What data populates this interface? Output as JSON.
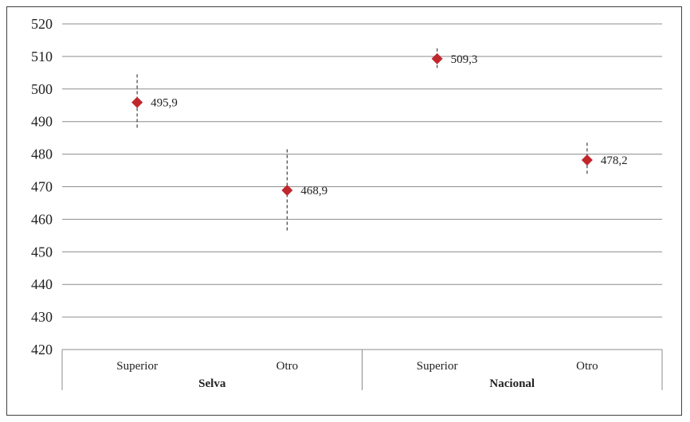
{
  "chart_data": {
    "type": "scatter",
    "title": "",
    "xlabel": "",
    "ylabel": "",
    "ylim": [
      420,
      520
    ],
    "yticks": [
      420,
      430,
      440,
      450,
      460,
      470,
      480,
      490,
      500,
      510,
      520
    ],
    "grid": true,
    "groups": [
      "Selva",
      "Nacional"
    ],
    "categories": [
      "Superior",
      "Otro",
      "Superior",
      "Otro"
    ],
    "points": [
      {
        "group": "Selva",
        "category": "Superior",
        "value": 495.9,
        "label": "495,9",
        "lower": 487.5,
        "upper": 504.5
      },
      {
        "group": "Selva",
        "category": "Otro",
        "value": 468.9,
        "label": "468,9",
        "lower": 456.0,
        "upper": 481.5
      },
      {
        "group": "Nacional",
        "category": "Superior",
        "value": 509.3,
        "label": "509,3",
        "lower": 506.5,
        "upper": 512.5
      },
      {
        "group": "Nacional",
        "category": "Otro",
        "value": 478.2,
        "label": "478,2",
        "lower": 473.5,
        "upper": 483.5
      }
    ],
    "colors": {
      "marker": "#c0272d",
      "grid": "#8c8c8c",
      "errorbar": "#404040"
    }
  }
}
